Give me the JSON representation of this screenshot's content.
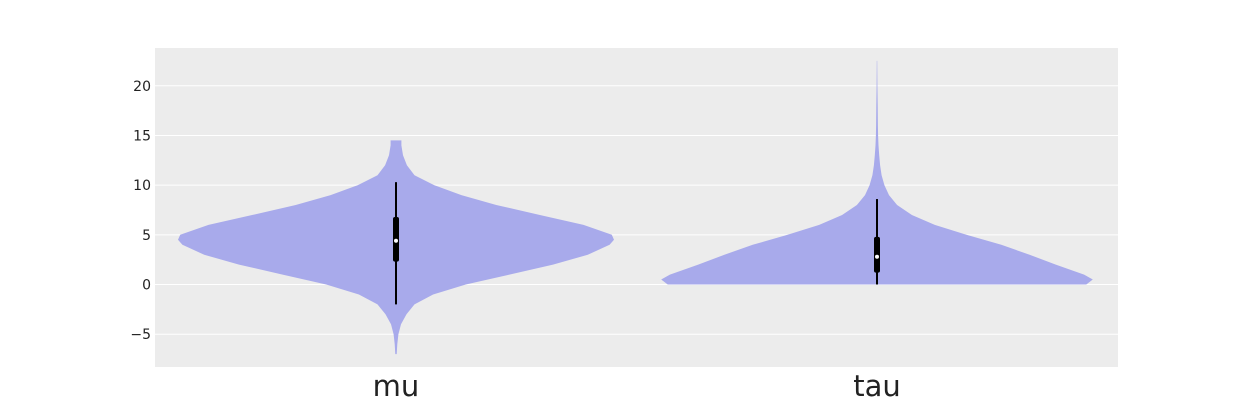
{
  "chart_data": {
    "type": "violin",
    "title": "",
    "xlabel": "",
    "ylabel": "",
    "ylim": [
      -8.3,
      23.8
    ],
    "yticks": [
      -5,
      0,
      5,
      10,
      15,
      20
    ],
    "ytick_labels": [
      "−5",
      "0",
      "5",
      "10",
      "15",
      "20"
    ],
    "grid": true,
    "colors": {
      "background": "#ececec",
      "grid": "#ffffff",
      "violin": "#a8aaeb",
      "box": "#000000",
      "median": "#ffffff"
    },
    "categories": [
      "mu",
      "tau"
    ],
    "violins": [
      {
        "name": "mu",
        "min": -7.0,
        "max": 14.5,
        "whisker_low": -2.0,
        "whisker_high": 10.3,
        "q1": 2.3,
        "q3": 6.8,
        "median": 4.4,
        "profile": [
          {
            "y": -7.0,
            "w": 0.003
          },
          {
            "y": -6.0,
            "w": 0.006
          },
          {
            "y": -5.0,
            "w": 0.011
          },
          {
            "y": -4.0,
            "w": 0.023
          },
          {
            "y": -3.0,
            "w": 0.048
          },
          {
            "y": -2.0,
            "w": 0.085
          },
          {
            "y": -1.0,
            "w": 0.17
          },
          {
            "y": 0.0,
            "w": 0.32
          },
          {
            "y": 1.0,
            "w": 0.52
          },
          {
            "y": 2.0,
            "w": 0.72
          },
          {
            "y": 3.0,
            "w": 0.88
          },
          {
            "y": 4.0,
            "w": 0.98
          },
          {
            "y": 4.5,
            "w": 1.0
          },
          {
            "y": 5.0,
            "w": 0.99
          },
          {
            "y": 6.0,
            "w": 0.86
          },
          {
            "y": 7.0,
            "w": 0.66
          },
          {
            "y": 8.0,
            "w": 0.46
          },
          {
            "y": 9.0,
            "w": 0.3
          },
          {
            "y": 10.0,
            "w": 0.175
          },
          {
            "y": 11.0,
            "w": 0.085
          },
          {
            "y": 12.0,
            "w": 0.05
          },
          {
            "y": 13.0,
            "w": 0.032
          },
          {
            "y": 14.0,
            "w": 0.025
          },
          {
            "y": 14.5,
            "w": 0.025
          }
        ]
      },
      {
        "name": "tau",
        "min": 0.0,
        "max": 22.5,
        "whisker_low": 0.0,
        "whisker_high": 8.6,
        "q1": 1.2,
        "q3": 4.8,
        "median": 2.8,
        "profile": [
          {
            "y": 0.0,
            "w": 0.96
          },
          {
            "y": 0.5,
            "w": 0.99
          },
          {
            "y": 1.0,
            "w": 0.95
          },
          {
            "y": 2.0,
            "w": 0.82
          },
          {
            "y": 3.0,
            "w": 0.7
          },
          {
            "y": 4.0,
            "w": 0.57
          },
          {
            "y": 5.0,
            "w": 0.41
          },
          {
            "y": 6.0,
            "w": 0.265
          },
          {
            "y": 7.0,
            "w": 0.16
          },
          {
            "y": 8.0,
            "w": 0.092
          },
          {
            "y": 9.0,
            "w": 0.055
          },
          {
            "y": 10.0,
            "w": 0.034
          },
          {
            "y": 11.0,
            "w": 0.021
          },
          {
            "y": 12.0,
            "w": 0.014
          },
          {
            "y": 13.0,
            "w": 0.01
          },
          {
            "y": 14.0,
            "w": 0.007
          },
          {
            "y": 15.0,
            "w": 0.005
          },
          {
            "y": 16.0,
            "w": 0.004
          },
          {
            "y": 18.0,
            "w": 0.003
          },
          {
            "y": 20.0,
            "w": 0.002
          },
          {
            "y": 22.5,
            "w": 0.001
          }
        ]
      }
    ]
  }
}
